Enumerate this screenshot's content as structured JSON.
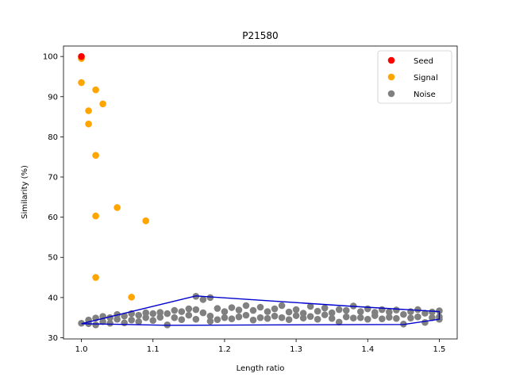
{
  "chart_data": {
    "type": "scatter",
    "title": "P21580",
    "xlabel": "Length ratio",
    "ylabel": "Similarity (%)",
    "xlim": [
      0.975,
      1.525
    ],
    "ylim": [
      29.7,
      102.6
    ],
    "xticks": [
      "1.0",
      "1.1",
      "1.2",
      "1.3",
      "1.4",
      "1.5"
    ],
    "yticks": [
      "30",
      "40",
      "50",
      "60",
      "70",
      "80",
      "90",
      "100"
    ],
    "grid": false,
    "legend_position": "top-right",
    "series": [
      {
        "name": "Seed",
        "color": "#ff0000",
        "points": [
          [
            1.0,
            100.0
          ]
        ]
      },
      {
        "name": "Signal",
        "color": "#ffa500",
        "points": [
          [
            1.0,
            99.5
          ],
          [
            1.0,
            93.5
          ],
          [
            1.02,
            91.7
          ],
          [
            1.03,
            88.2
          ],
          [
            1.01,
            86.5
          ],
          [
            1.01,
            83.2
          ],
          [
            1.02,
            75.4
          ],
          [
            1.05,
            62.4
          ],
          [
            1.02,
            60.3
          ],
          [
            1.09,
            59.1
          ],
          [
            1.02,
            45.0
          ],
          [
            1.07,
            40.1
          ]
        ]
      },
      {
        "name": "Noise",
        "color": "#808080",
        "points": [
          [
            1.0,
            33.6
          ],
          [
            1.01,
            34.4
          ],
          [
            1.01,
            33.5
          ],
          [
            1.02,
            34.9
          ],
          [
            1.02,
            33.2
          ],
          [
            1.03,
            35.3
          ],
          [
            1.03,
            34.0
          ],
          [
            1.04,
            35.0
          ],
          [
            1.04,
            33.6
          ],
          [
            1.05,
            35.8
          ],
          [
            1.05,
            34.6
          ],
          [
            1.06,
            35.4
          ],
          [
            1.06,
            33.7
          ],
          [
            1.07,
            36.0
          ],
          [
            1.07,
            34.4
          ],
          [
            1.08,
            35.6
          ],
          [
            1.08,
            34.0
          ],
          [
            1.09,
            36.2
          ],
          [
            1.09,
            35.0
          ],
          [
            1.1,
            36.0
          ],
          [
            1.1,
            34.3
          ],
          [
            1.11,
            36.3
          ],
          [
            1.11,
            35.1
          ],
          [
            1.12,
            36.0
          ],
          [
            1.12,
            33.2
          ],
          [
            1.13,
            36.8
          ],
          [
            1.13,
            35.0
          ],
          [
            1.14,
            36.5
          ],
          [
            1.14,
            34.5
          ],
          [
            1.15,
            37.2
          ],
          [
            1.15,
            35.6
          ],
          [
            1.16,
            40.3
          ],
          [
            1.16,
            37.0
          ],
          [
            1.16,
            34.6
          ],
          [
            1.17,
            39.5
          ],
          [
            1.17,
            36.2
          ],
          [
            1.18,
            40.0
          ],
          [
            1.18,
            35.4
          ],
          [
            1.18,
            34.1
          ],
          [
            1.19,
            37.3
          ],
          [
            1.19,
            34.5
          ],
          [
            1.2,
            36.5
          ],
          [
            1.2,
            35.0
          ],
          [
            1.21,
            37.5
          ],
          [
            1.21,
            34.7
          ],
          [
            1.22,
            36.9
          ],
          [
            1.22,
            35.2
          ],
          [
            1.23,
            38.0
          ],
          [
            1.23,
            35.6
          ],
          [
            1.24,
            36.8
          ],
          [
            1.24,
            34.4
          ],
          [
            1.25,
            37.6
          ],
          [
            1.25,
            35.0
          ],
          [
            1.26,
            36.5
          ],
          [
            1.26,
            34.8
          ],
          [
            1.27,
            37.2
          ],
          [
            1.27,
            35.4
          ],
          [
            1.28,
            38.0
          ],
          [
            1.28,
            35.0
          ],
          [
            1.29,
            36.4
          ],
          [
            1.29,
            34.5
          ],
          [
            1.3,
            37.0
          ],
          [
            1.3,
            35.5
          ],
          [
            1.31,
            36.1
          ],
          [
            1.31,
            34.9
          ],
          [
            1.32,
            37.8
          ],
          [
            1.32,
            35.3
          ],
          [
            1.33,
            36.6
          ],
          [
            1.33,
            34.6
          ],
          [
            1.34,
            37.4
          ],
          [
            1.34,
            35.7
          ],
          [
            1.35,
            36.2
          ],
          [
            1.35,
            34.8
          ],
          [
            1.36,
            37.0
          ],
          [
            1.36,
            33.9
          ],
          [
            1.37,
            36.8
          ],
          [
            1.37,
            35.2
          ],
          [
            1.38,
            37.9
          ],
          [
            1.38,
            34.9
          ],
          [
            1.39,
            36.5
          ],
          [
            1.39,
            35.0
          ],
          [
            1.4,
            37.2
          ],
          [
            1.4,
            34.6
          ],
          [
            1.41,
            36.3
          ],
          [
            1.41,
            35.5
          ],
          [
            1.42,
            37.0
          ],
          [
            1.42,
            34.7
          ],
          [
            1.43,
            36.4
          ],
          [
            1.43,
            35.1
          ],
          [
            1.44,
            36.9
          ],
          [
            1.44,
            34.8
          ],
          [
            1.45,
            35.8
          ],
          [
            1.45,
            33.4
          ],
          [
            1.46,
            36.5
          ],
          [
            1.46,
            34.9
          ],
          [
            1.47,
            37.0
          ],
          [
            1.47,
            35.2
          ],
          [
            1.48,
            36.1
          ],
          [
            1.48,
            33.8
          ],
          [
            1.49,
            36.4
          ],
          [
            1.49,
            35.0
          ],
          [
            1.5,
            36.7
          ],
          [
            1.5,
            35.2
          ],
          [
            1.5,
            34.6
          ]
        ]
      }
    ],
    "hull": {
      "color": "#0000cd",
      "points": [
        [
          1.0,
          33.5
        ],
        [
          1.16,
          40.4
        ],
        [
          1.38,
          37.8
        ],
        [
          1.5,
          36.5
        ],
        [
          1.5,
          34.6
        ],
        [
          1.45,
          33.3
        ],
        [
          1.12,
          33.1
        ],
        [
          1.0,
          33.5
        ]
      ]
    }
  }
}
